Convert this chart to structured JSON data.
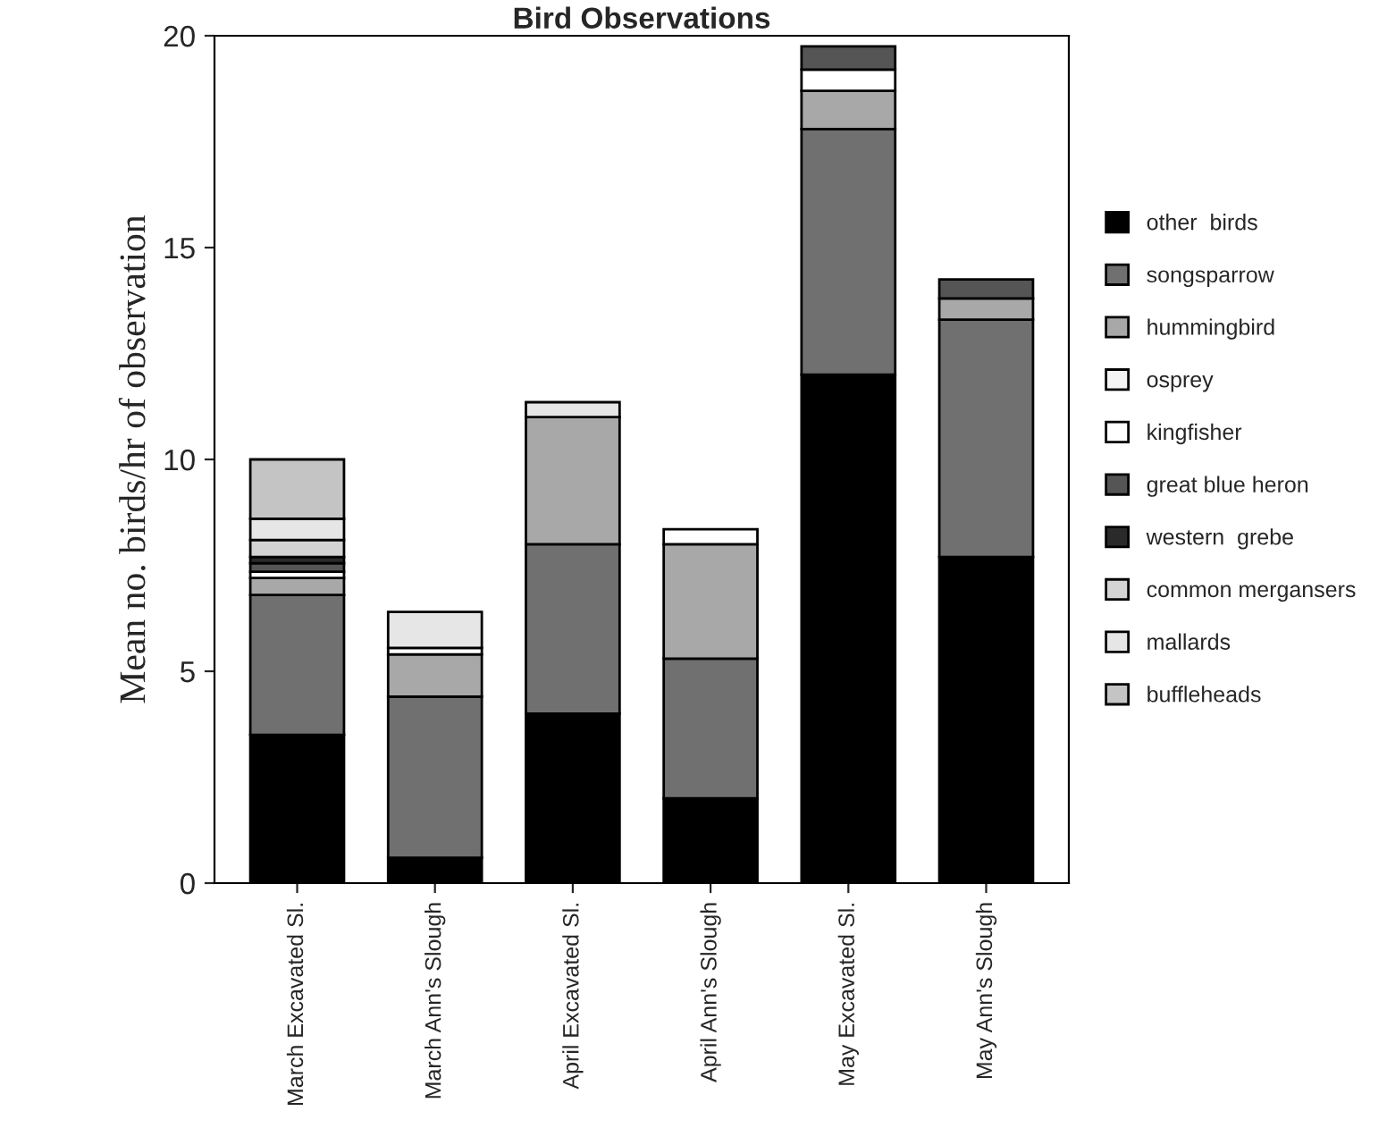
{
  "chart_data": {
    "type": "bar",
    "stacked": true,
    "title": "Bird Observations",
    "ylabel": "Mean no. birds/hr of observation",
    "categories": [
      "March Excavated Sl.",
      "March Ann's Slough",
      "April Excavated Sl.",
      "April Ann's Slough",
      "May Excavated Sl.",
      "May Ann's Slough"
    ],
    "series": [
      {
        "name": "other  birds",
        "color": "#000000",
        "values": [
          3.5,
          0.6,
          4.0,
          2.0,
          12.0,
          7.7
        ]
      },
      {
        "name": "songsparrow",
        "color": "#707070",
        "values": [
          3.3,
          3.8,
          4.0,
          3.3,
          5.8,
          5.6
        ]
      },
      {
        "name": "hummingbird",
        "color": "#a8a8a8",
        "values": [
          0.4,
          1.0,
          3.0,
          2.7,
          0.9,
          0.5
        ]
      },
      {
        "name": "osprey",
        "color": "#f4f4f4",
        "values": [
          0,
          0,
          0,
          0,
          0,
          0
        ]
      },
      {
        "name": "kingfisher",
        "color": "#ffffff",
        "values": [
          0.15,
          0.15,
          0,
          0.35,
          0.5,
          0
        ]
      },
      {
        "name": "great blue heron",
        "color": "#555555",
        "values": [
          0.2,
          0,
          0,
          0,
          0.55,
          0.45
        ]
      },
      {
        "name": "western  grebe",
        "color": "#2a2a2a",
        "values": [
          0.15,
          0,
          0,
          0,
          0,
          0
        ]
      },
      {
        "name": "common mergansers",
        "color": "#d4d4d4",
        "values": [
          0.4,
          0,
          0,
          0,
          0,
          0
        ]
      },
      {
        "name": "mallards",
        "color": "#e6e6e6",
        "values": [
          0.5,
          0.85,
          0.35,
          0,
          0,
          0
        ]
      },
      {
        "name": "buffleheads",
        "color": "#c4c4c4",
        "values": [
          1.4,
          0,
          0,
          0,
          0,
          0
        ]
      }
    ],
    "ylim": [
      0,
      20
    ],
    "yticks": [
      0,
      5,
      10,
      15,
      20
    ],
    "grid": false,
    "legend": "right"
  }
}
